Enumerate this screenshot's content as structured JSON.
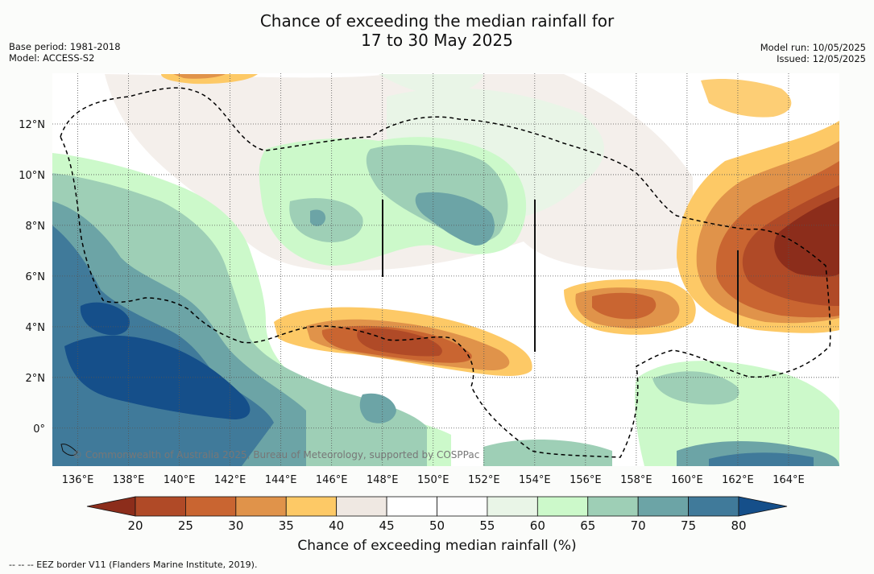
{
  "title": {
    "line1": "Chance of exceeding the median rainfall for",
    "line2": "17 to 30 May 2025"
  },
  "meta_left": {
    "base_period": "Base period: 1981-2018",
    "model": "Model: ACCESS-S2"
  },
  "meta_right": {
    "model_run": "Model run: 10/05/2025",
    "issued": "Issued: 12/05/2025"
  },
  "map": {
    "lon_range": [
      135,
      166
    ],
    "lat_range": [
      -1.5,
      14
    ],
    "lon_ticks": [
      "136°E",
      "138°E",
      "140°E",
      "142°E",
      "144°E",
      "146°E",
      "148°E",
      "150°E",
      "152°E",
      "154°E",
      "156°E",
      "158°E",
      "160°E",
      "162°E",
      "164°E"
    ],
    "lat_ticks": [
      "0°",
      "2°N",
      "4°N",
      "6°N",
      "8°N",
      "10°N",
      "12°N"
    ],
    "border_style": "dashed black",
    "gridlines": "dotted"
  },
  "credit": "© Commonwealth of Australia 2025, Bureau of Meteorology, supported by COSPPac",
  "colorbar": {
    "title": "Chance of exceeding median rainfall (%)",
    "ticks": [
      "20",
      "25",
      "30",
      "35",
      "40",
      "45",
      "50",
      "55",
      "60",
      "65",
      "70",
      "75",
      "80"
    ],
    "colors": [
      "#8c2d1b",
      "#b04a27",
      "#c96531",
      "#e0934a",
      "#fdc966",
      "#efe8e2",
      "#ffffff",
      "#fdfdfd",
      "#e9f5e7",
      "#ccf9ca",
      "#9ecfb6",
      "#6ca4a6",
      "#407a9a",
      "#154f8a"
    ]
  },
  "footer": "-- -- -- EEZ border V11 (Flanders Marine Institute, 2019)."
}
